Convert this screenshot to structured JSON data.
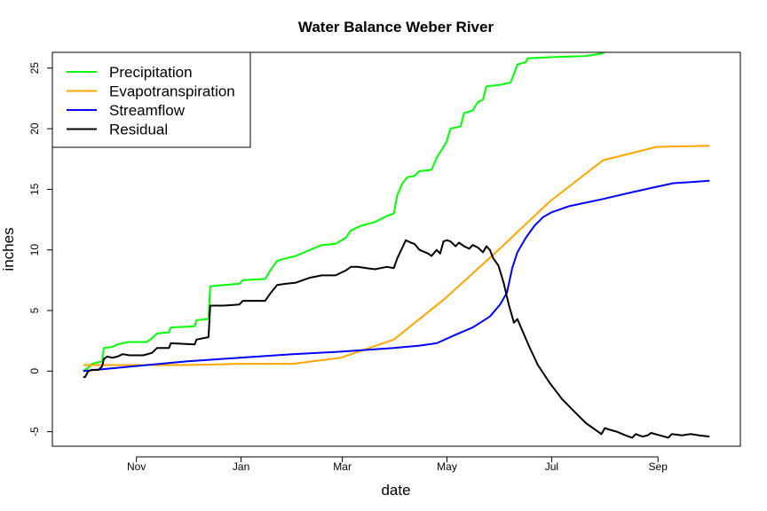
{
  "chart_data": {
    "type": "line",
    "title": "Water Balance Weber River",
    "xlabel": "date",
    "ylabel": "inches",
    "x_ticks": [
      {
        "label": "Nov",
        "date": "2016-11-01"
      },
      {
        "label": "Jan",
        "date": "2017-01-01"
      },
      {
        "label": "Mar",
        "date": "2017-03-01"
      },
      {
        "label": "May",
        "date": "2017-05-01"
      },
      {
        "label": "Jul",
        "date": "2017-07-01"
      },
      {
        "label": "Sep",
        "date": "2017-09-01"
      }
    ],
    "y_ticks": [
      -5,
      0,
      5,
      10,
      15,
      20,
      25
    ],
    "xlim": [
      "2016-09-13",
      "2017-10-19"
    ],
    "ylim": [
      -6.2,
      26.3
    ],
    "grid": false,
    "legend_position": "top-left",
    "series": [
      {
        "name": "Precipitation",
        "color": "#00ff00",
        "points": [
          [
            "2016-10-01",
            0.0
          ],
          [
            "2016-10-04",
            0.3
          ],
          [
            "2016-10-06",
            0.6
          ],
          [
            "2016-10-09",
            0.7
          ],
          [
            "2016-10-12",
            0.8
          ],
          [
            "2016-10-13",
            1.9
          ],
          [
            "2016-10-18",
            2.0
          ],
          [
            "2016-10-21",
            2.2
          ],
          [
            "2016-10-27",
            2.4
          ],
          [
            "2016-11-07",
            2.4
          ],
          [
            "2016-11-10",
            2.7
          ],
          [
            "2016-11-13",
            3.1
          ],
          [
            "2016-11-20",
            3.2
          ],
          [
            "2016-11-21",
            3.6
          ],
          [
            "2016-12-05",
            3.7
          ],
          [
            "2016-12-06",
            4.2
          ],
          [
            "2016-12-13",
            4.3
          ],
          [
            "2016-12-14",
            7.0
          ],
          [
            "2016-12-22",
            7.1
          ],
          [
            "2016-12-31",
            7.2
          ],
          [
            "2017-01-02",
            7.5
          ],
          [
            "2017-01-15",
            7.6
          ],
          [
            "2017-01-18",
            8.3
          ],
          [
            "2017-01-22",
            9.1
          ],
          [
            "2017-01-27",
            9.3
          ],
          [
            "2017-02-02",
            9.5
          ],
          [
            "2017-02-10",
            10.0
          ],
          [
            "2017-02-17",
            10.4
          ],
          [
            "2017-02-25",
            10.5
          ],
          [
            "2017-03-03",
            11.0
          ],
          [
            "2017-03-06",
            11.6
          ],
          [
            "2017-03-12",
            12.0
          ],
          [
            "2017-03-20",
            12.3
          ],
          [
            "2017-03-27",
            12.8
          ],
          [
            "2017-03-31",
            13.0
          ],
          [
            "2017-04-02",
            14.5
          ],
          [
            "2017-04-05",
            15.5
          ],
          [
            "2017-04-08",
            16.0
          ],
          [
            "2017-04-12",
            16.1
          ],
          [
            "2017-04-15",
            16.5
          ],
          [
            "2017-04-22",
            16.6
          ],
          [
            "2017-04-25",
            17.6
          ],
          [
            "2017-04-29",
            18.5
          ],
          [
            "2017-05-01",
            19.0
          ],
          [
            "2017-05-03",
            20.0
          ],
          [
            "2017-05-09",
            20.2
          ],
          [
            "2017-05-11",
            21.3
          ],
          [
            "2017-05-16",
            21.5
          ],
          [
            "2017-05-19",
            22.2
          ],
          [
            "2017-05-22",
            22.4
          ],
          [
            "2017-05-24",
            23.5
          ],
          [
            "2017-05-31",
            23.6
          ],
          [
            "2017-06-07",
            23.8
          ],
          [
            "2017-06-09",
            24.5
          ],
          [
            "2017-06-11",
            25.3
          ],
          [
            "2017-06-16",
            25.5
          ],
          [
            "2017-06-17",
            25.8
          ],
          [
            "2017-06-30",
            25.9
          ],
          [
            "2017-07-21",
            26.0
          ],
          [
            "2017-07-30",
            26.2
          ],
          [
            "2017-08-02",
            26.4
          ]
        ]
      },
      {
        "name": "Evapotranspiration",
        "color": "#ffa500",
        "points": [
          [
            "2016-10-01",
            0.5
          ],
          [
            "2016-10-31",
            0.5
          ],
          [
            "2016-11-30",
            0.5
          ],
          [
            "2016-12-31",
            0.6
          ],
          [
            "2017-01-31",
            0.6
          ],
          [
            "2017-02-28",
            1.1
          ],
          [
            "2017-03-31",
            2.6
          ],
          [
            "2017-04-30",
            6.0
          ],
          [
            "2017-05-31",
            10.0
          ],
          [
            "2017-06-30",
            14.0
          ],
          [
            "2017-07-31",
            17.4
          ],
          [
            "2017-08-31",
            18.5
          ],
          [
            "2017-10-01",
            18.6
          ]
        ]
      },
      {
        "name": "Streamflow",
        "color": "#0000ff",
        "points": [
          [
            "2016-10-01",
            0.0
          ],
          [
            "2016-10-31",
            0.4
          ],
          [
            "2016-11-30",
            0.8
          ],
          [
            "2016-12-31",
            1.1
          ],
          [
            "2017-01-31",
            1.4
          ],
          [
            "2017-02-28",
            1.6
          ],
          [
            "2017-03-31",
            1.9
          ],
          [
            "2017-04-15",
            2.1
          ],
          [
            "2017-04-25",
            2.3
          ],
          [
            "2017-05-06",
            3.0
          ],
          [
            "2017-05-16",
            3.6
          ],
          [
            "2017-05-26",
            4.5
          ],
          [
            "2017-06-01",
            5.5
          ],
          [
            "2017-06-05",
            6.5
          ],
          [
            "2017-06-08",
            8.5
          ],
          [
            "2017-06-11",
            9.8
          ],
          [
            "2017-06-16",
            11.0
          ],
          [
            "2017-06-21",
            12.0
          ],
          [
            "2017-06-26",
            12.7
          ],
          [
            "2017-07-01",
            13.1
          ],
          [
            "2017-07-11",
            13.6
          ],
          [
            "2017-07-21",
            13.9
          ],
          [
            "2017-07-31",
            14.2
          ],
          [
            "2017-08-15",
            14.7
          ],
          [
            "2017-08-31",
            15.2
          ],
          [
            "2017-09-10",
            15.5
          ],
          [
            "2017-09-20",
            15.6
          ],
          [
            "2017-10-01",
            15.7
          ]
        ]
      },
      {
        "name": "Residual",
        "color": "#000000",
        "points": [
          [
            "2016-10-01",
            -0.5
          ],
          [
            "2016-10-02",
            -0.5
          ],
          [
            "2016-10-04",
            0.0
          ],
          [
            "2016-10-06",
            0.1
          ],
          [
            "2016-10-08",
            0.1
          ],
          [
            "2016-10-10",
            0.1
          ],
          [
            "2016-10-12",
            0.4
          ],
          [
            "2016-10-13",
            1.0
          ],
          [
            "2016-10-15",
            1.2
          ],
          [
            "2016-10-18",
            1.1
          ],
          [
            "2016-10-21",
            1.2
          ],
          [
            "2016-10-24",
            1.4
          ],
          [
            "2016-10-28",
            1.3
          ],
          [
            "2016-11-05",
            1.3
          ],
          [
            "2016-11-10",
            1.5
          ],
          [
            "2016-11-13",
            1.9
          ],
          [
            "2016-11-20",
            1.9
          ],
          [
            "2016-11-21",
            2.3
          ],
          [
            "2016-12-05",
            2.2
          ],
          [
            "2016-12-06",
            2.6
          ],
          [
            "2016-12-13",
            2.8
          ],
          [
            "2016-12-14",
            5.4
          ],
          [
            "2016-12-22",
            5.4
          ],
          [
            "2016-12-31",
            5.5
          ],
          [
            "2017-01-02",
            5.8
          ],
          [
            "2017-01-15",
            5.8
          ],
          [
            "2017-01-18",
            6.4
          ],
          [
            "2017-01-22",
            7.1
          ],
          [
            "2017-01-27",
            7.2
          ],
          [
            "2017-02-02",
            7.3
          ],
          [
            "2017-02-10",
            7.7
          ],
          [
            "2017-02-17",
            7.9
          ],
          [
            "2017-02-25",
            7.9
          ],
          [
            "2017-03-03",
            8.3
          ],
          [
            "2017-03-06",
            8.6
          ],
          [
            "2017-03-10",
            8.6
          ],
          [
            "2017-03-15",
            8.5
          ],
          [
            "2017-03-20",
            8.4
          ],
          [
            "2017-03-27",
            8.6
          ],
          [
            "2017-03-31",
            8.5
          ],
          [
            "2017-04-02",
            9.3
          ],
          [
            "2017-04-05",
            10.2
          ],
          [
            "2017-04-07",
            10.8
          ],
          [
            "2017-04-10",
            10.6
          ],
          [
            "2017-04-12",
            10.5
          ],
          [
            "2017-04-15",
            10.0
          ],
          [
            "2017-04-20",
            9.7
          ],
          [
            "2017-04-22",
            9.5
          ],
          [
            "2017-04-25",
            10.0
          ],
          [
            "2017-04-27",
            9.7
          ],
          [
            "2017-04-29",
            10.7
          ],
          [
            "2017-05-01",
            10.8
          ],
          [
            "2017-05-03",
            10.7
          ],
          [
            "2017-05-06",
            10.3
          ],
          [
            "2017-05-08",
            10.6
          ],
          [
            "2017-05-11",
            10.3
          ],
          [
            "2017-05-14",
            10.1
          ],
          [
            "2017-05-16",
            10.4
          ],
          [
            "2017-05-19",
            10.2
          ],
          [
            "2017-05-22",
            9.8
          ],
          [
            "2017-05-24",
            10.3
          ],
          [
            "2017-05-26",
            10.0
          ],
          [
            "2017-05-28",
            9.3
          ],
          [
            "2017-05-31",
            8.7
          ],
          [
            "2017-06-03",
            7.3
          ],
          [
            "2017-06-06",
            5.5
          ],
          [
            "2017-06-09",
            4.0
          ],
          [
            "2017-06-11",
            4.3
          ],
          [
            "2017-06-14",
            3.3
          ],
          [
            "2017-06-18",
            2.0
          ],
          [
            "2017-06-23",
            0.5
          ],
          [
            "2017-06-30",
            -1.0
          ],
          [
            "2017-07-07",
            -2.3
          ],
          [
            "2017-07-14",
            -3.3
          ],
          [
            "2017-07-21",
            -4.3
          ],
          [
            "2017-07-27",
            -4.9
          ],
          [
            "2017-07-30",
            -5.2
          ],
          [
            "2017-08-01",
            -4.7
          ],
          [
            "2017-08-03",
            -4.8
          ],
          [
            "2017-08-08",
            -5.0
          ],
          [
            "2017-08-13",
            -5.3
          ],
          [
            "2017-08-17",
            -5.5
          ],
          [
            "2017-08-19",
            -5.2
          ],
          [
            "2017-08-23",
            -5.4
          ],
          [
            "2017-08-26",
            -5.3
          ],
          [
            "2017-08-28",
            -5.1
          ],
          [
            "2017-09-02",
            -5.3
          ],
          [
            "2017-09-07",
            -5.5
          ],
          [
            "2017-09-09",
            -5.2
          ],
          [
            "2017-09-15",
            -5.3
          ],
          [
            "2017-09-20",
            -5.2
          ],
          [
            "2017-09-25",
            -5.3
          ],
          [
            "2017-10-01",
            -5.4
          ]
        ]
      }
    ]
  }
}
